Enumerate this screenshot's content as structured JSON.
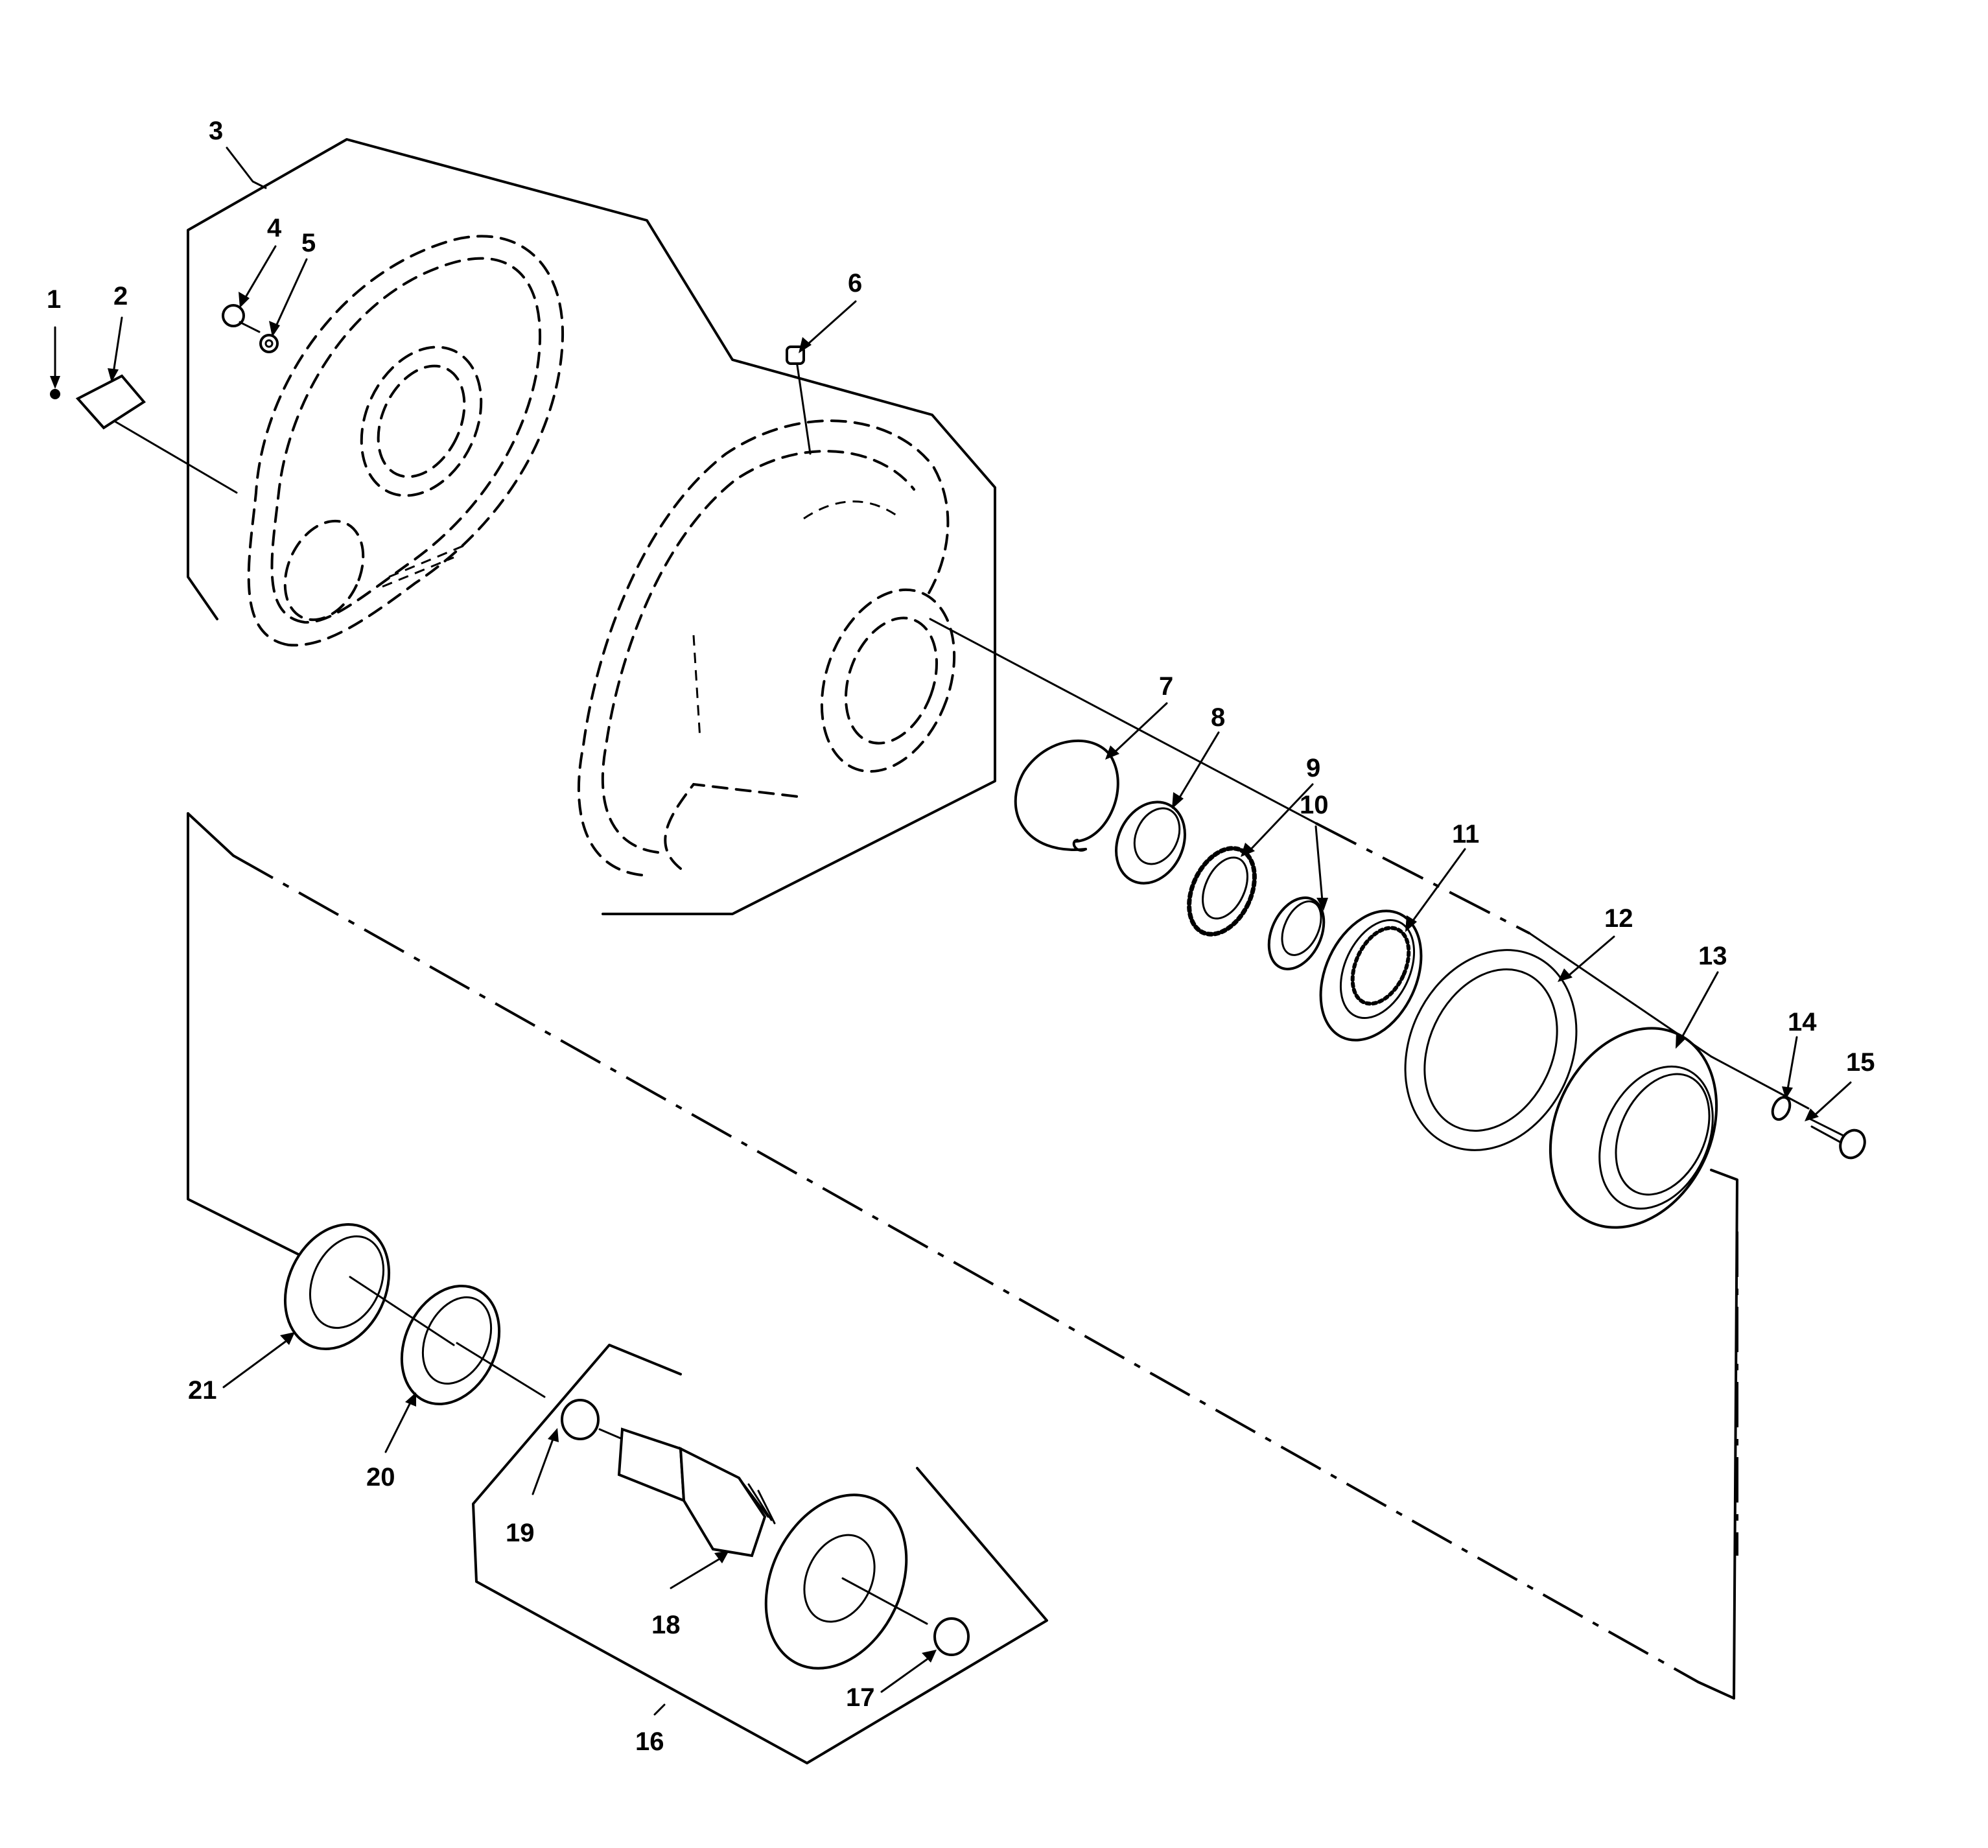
{
  "callouts": [
    {
      "id": "1",
      "text": "1"
    },
    {
      "id": "2",
      "text": "2"
    },
    {
      "id": "3",
      "text": "3"
    },
    {
      "id": "4",
      "text": "4"
    },
    {
      "id": "5",
      "text": "5"
    },
    {
      "id": "6",
      "text": "6"
    },
    {
      "id": "7",
      "text": "7"
    },
    {
      "id": "8",
      "text": "8"
    },
    {
      "id": "9",
      "text": "9"
    },
    {
      "id": "10",
      "text": "10"
    },
    {
      "id": "11",
      "text": "11"
    },
    {
      "id": "12",
      "text": "12"
    },
    {
      "id": "13",
      "text": "13"
    },
    {
      "id": "14",
      "text": "14"
    },
    {
      "id": "15",
      "text": "15"
    },
    {
      "id": "16",
      "text": "16"
    },
    {
      "id": "17",
      "text": "17"
    },
    {
      "id": "18",
      "text": "18"
    },
    {
      "id": "19",
      "text": "19"
    },
    {
      "id": "20",
      "text": "20"
    },
    {
      "id": "21",
      "text": "21"
    }
  ]
}
